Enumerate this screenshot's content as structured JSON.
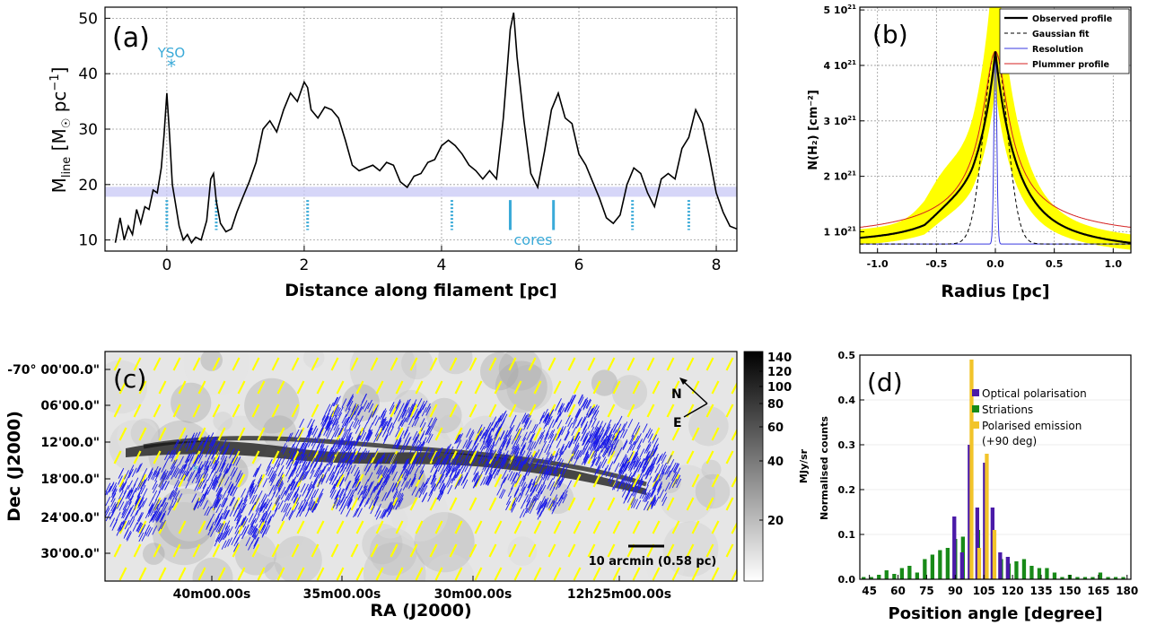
{
  "chart_data": [
    {
      "panel": "(a)",
      "type": "line",
      "xlabel": "Distance along filament [pc]",
      "ylabel_main": "M",
      "ylabel_sub": "line",
      "ylabel_units": "[M",
      "ylabel_units_sub": "☉",
      "ylabel_units_tail": " pc",
      "ylabel_units_sup": "−1",
      "ylabel_close": "]",
      "xlim": [
        -0.9,
        8.3
      ],
      "ylim": [
        8,
        52
      ],
      "xticks": [
        0,
        2,
        4,
        6,
        8
      ],
      "yticks": [
        10,
        20,
        30,
        40,
        50
      ],
      "grid": true,
      "band": [
        17.8,
        19.6
      ],
      "series": [
        {
          "x": [
            -0.75,
            -0.68,
            -0.62,
            -0.56,
            -0.5,
            -0.44,
            -0.38,
            -0.32,
            -0.26,
            -0.2,
            -0.14,
            -0.08,
            -0.04,
            0.0,
            0.04,
            0.08,
            0.12,
            0.18,
            0.24,
            0.3,
            0.36,
            0.42,
            0.5,
            0.58,
            0.64,
            0.68,
            0.72,
            0.78,
            0.86,
            0.94,
            1.02,
            1.1,
            1.2,
            1.3,
            1.4,
            1.5,
            1.6,
            1.7,
            1.8,
            1.9,
            2.0,
            2.05,
            2.1,
            2.2,
            2.3,
            2.4,
            2.5,
            2.6,
            2.7,
            2.8,
            2.9,
            3.0,
            3.1,
            3.2,
            3.3,
            3.4,
            3.5,
            3.6,
            3.7,
            3.8,
            3.9,
            4.0,
            4.1,
            4.2,
            4.3,
            4.4,
            4.5,
            4.6,
            4.7,
            4.8,
            4.9,
            4.95,
            5.0,
            5.05,
            5.1,
            5.2,
            5.3,
            5.4,
            5.5,
            5.6,
            5.7,
            5.8,
            5.9,
            6.0,
            6.1,
            6.2,
            6.3,
            6.4,
            6.5,
            6.6,
            6.7,
            6.8,
            6.9,
            7.0,
            7.1,
            7.2,
            7.3,
            7.4,
            7.5,
            7.6,
            7.7,
            7.8,
            7.9,
            8.0,
            8.1,
            8.2,
            8.3
          ],
          "y": [
            9.5,
            14.0,
            10.0,
            12.5,
            11.0,
            15.5,
            13.0,
            16.0,
            15.5,
            19.0,
            18.5,
            23.0,
            29.0,
            36.5,
            29.0,
            20.0,
            17.0,
            12.5,
            10.0,
            11.0,
            9.5,
            10.5,
            10.0,
            13.5,
            21.0,
            22.0,
            17.0,
            13.0,
            11.5,
            12.0,
            15.0,
            17.5,
            20.5,
            24.0,
            30.0,
            31.5,
            29.5,
            33.5,
            36.5,
            35.0,
            38.5,
            37.5,
            33.5,
            32.0,
            34.0,
            33.5,
            32.0,
            28.0,
            23.5,
            22.5,
            23.0,
            23.5,
            22.5,
            24.0,
            23.5,
            20.5,
            19.5,
            21.5,
            22.0,
            24.0,
            24.5,
            27.0,
            28.0,
            27.0,
            25.5,
            23.5,
            22.5,
            21.0,
            22.5,
            21.0,
            32.0,
            40.0,
            48.0,
            51.0,
            43.0,
            31.5,
            22.0,
            19.5,
            26.0,
            33.5,
            36.5,
            32.0,
            31.0,
            25.5,
            23.5,
            20.5,
            17.5,
            14.0,
            13.0,
            14.5,
            20.0,
            23.0,
            22.0,
            18.5,
            16.0,
            21.0,
            22.0,
            21.0,
            26.5,
            28.5,
            33.5,
            31.0,
            25.0,
            18.5,
            15.0,
            12.5,
            12.0
          ]
        }
      ],
      "tick_marks_dotted": [
        0.0,
        0.72,
        2.05,
        4.15,
        6.78,
        7.6
      ],
      "tick_marks_solid": [
        5.0,
        5.63
      ],
      "annotations": {
        "yso": "YSO",
        "cores": "cores",
        "star": "*"
      }
    },
    {
      "panel": "(b)",
      "type": "line",
      "xlabel": "Radius [pc]",
      "ylabel": "N(H₂) [cm⁻²]",
      "xlim": [
        -1.15,
        1.15
      ],
      "ylim": [
        0.62,
        5.05
      ],
      "xticks": [
        "-1.0",
        "-0.5",
        "0.0",
        "0.5",
        "1.0"
      ],
      "xtick_values": [
        -1.0,
        -0.5,
        0.0,
        0.5,
        1.0
      ],
      "yticks": [
        "1 10",
        "2 10",
        "3 10",
        "4 10",
        "5 10"
      ],
      "ytick_exp": "21",
      "ytick_values": [
        1,
        2,
        3,
        4,
        5
      ],
      "grid": true,
      "legend": [
        "Observed profile",
        "Gaussian fit",
        "Resolution",
        "Plummer profile"
      ],
      "legend_position": "top-right",
      "colors": {
        "observed": "#000000",
        "gaussian": "#000000",
        "resolution": "#3a3ae0",
        "plummer": "#d42020",
        "error_band": "#ffff00"
      },
      "model": {
        "peak": 4.25,
        "base": 0.78,
        "gauss_sigma": 0.1,
        "res_sigma": 0.012,
        "plummer_rflat": 0.1,
        "plummer_p": 2.0,
        "band_peak": 5.4,
        "band_low": 0.65
      }
    },
    {
      "panel": "(c)",
      "type": "heatmap",
      "xlabel": "RA (J2000)",
      "ylabel": "Dec (J2000)",
      "xticks": [
        "40m00.00s",
        "35m00.00s",
        "30m00.00s",
        "12h25m00.00s"
      ],
      "yticks": [
        "-70° 00'00.0\"",
        "06'00.0\"",
        "12'00.0\"",
        "18'00.0\"",
        "24'00.0\"",
        "30'00.0\""
      ],
      "colorbar_ticks": [
        140,
        120,
        100,
        80,
        60,
        40,
        20
      ],
      "colorbar_label": "MJy/sr",
      "compass": {
        "north": "N",
        "east": "E"
      },
      "scalebar": "10 arcmin (0.58 pc)",
      "colors": {
        "segments_yellow": "#ffff00",
        "segments_blue": "#1a1ae8",
        "yso": "#40b0e0"
      }
    },
    {
      "panel": "(d)",
      "type": "bar",
      "xlabel": "Position angle [degree]",
      "ylabel": "Normalised counts",
      "xlim": [
        40,
        182
      ],
      "ylim": [
        0,
        0.5
      ],
      "xticks": [
        45,
        60,
        75,
        90,
        105,
        120,
        135,
        150,
        165,
        180
      ],
      "yticks": [
        "0.0",
        "0.1",
        "0.2",
        "0.3",
        "0.4",
        "0.5"
      ],
      "legend": [
        "Optical polarisation",
        "Striations",
        "Polarised emission",
        "(+90 deg)"
      ],
      "colors": {
        "optical": "#4a1aa8",
        "striations": "#188a18",
        "emission": "#f2c42a"
      },
      "series": [
        {
          "name": "Striations",
          "x": [
            42,
            46,
            50,
            54,
            58,
            62,
            66,
            70,
            74,
            78,
            82,
            86,
            90,
            94,
            98,
            102,
            106,
            110,
            114,
            118,
            122,
            126,
            130,
            134,
            138,
            142,
            146,
            150,
            154,
            158,
            162,
            166,
            170,
            174,
            178
          ],
          "values": [
            0.005,
            0.005,
            0.01,
            0.02,
            0.012,
            0.025,
            0.03,
            0.015,
            0.045,
            0.055,
            0.065,
            0.07,
            0.09,
            0.095,
            0.105,
            0.11,
            0.075,
            0.07,
            0.045,
            0.035,
            0.04,
            0.045,
            0.03,
            0.025,
            0.025,
            0.015,
            0.005,
            0.01,
            0.005,
            0.005,
            0.005,
            0.015,
            0.005,
            0.005,
            0.005
          ]
        },
        {
          "name": "Optical polarisation",
          "x": [
            89.5,
            93.5,
            97.5,
            101.5,
            105.5,
            109.5,
            113.5,
            117.5
          ],
          "values": [
            0.14,
            0.06,
            0.3,
            0.16,
            0.26,
            0.16,
            0.06,
            0.05
          ]
        },
        {
          "name": "Polarised emission",
          "x": [
            98.5,
            102.5,
            106.5,
            110.5
          ],
          "values": [
            0.49,
            0.07,
            0.28,
            0.11
          ]
        }
      ]
    }
  ]
}
